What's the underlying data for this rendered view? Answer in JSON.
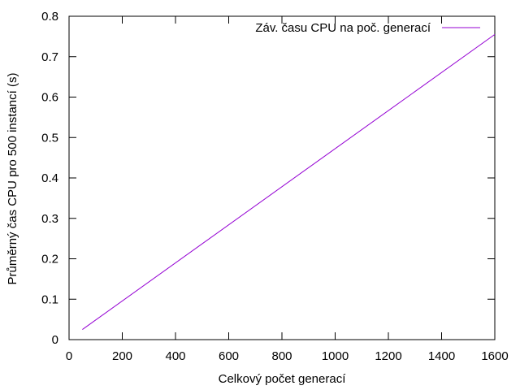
{
  "chart_data": {
    "type": "line",
    "xlabel": "Celkový počet generací",
    "ylabel": "Průměrný čas CPU pro 500 instancí (s)",
    "xlim": [
      0,
      1600
    ],
    "ylim": [
      0,
      0.8
    ],
    "x_ticks": [
      0,
      200,
      400,
      600,
      800,
      1000,
      1200,
      1400,
      1600
    ],
    "y_ticks": [
      0,
      0.1,
      0.2,
      0.3,
      0.4,
      0.5,
      0.6,
      0.7,
      0.8
    ],
    "x_tick_labels": [
      "0",
      "200",
      "400",
      "600",
      "800",
      "1000",
      "1200",
      "1400",
      "1600"
    ],
    "y_tick_labels": [
      "0",
      "0.1",
      "0.2",
      "0.3",
      "0.4",
      "0.5",
      "0.6",
      "0.7",
      "0.8"
    ],
    "grid": false,
    "legend_position": "top-right",
    "series": [
      {
        "name": "Záv. času CPU na poč. generací",
        "color": "#9400d3",
        "x": [
          50,
          1600
        ],
        "y": [
          0.025,
          0.755
        ]
      }
    ]
  }
}
